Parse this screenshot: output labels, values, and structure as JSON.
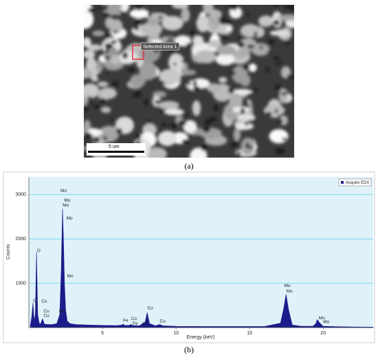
{
  "image_panel": {
    "label": "(a)",
    "selection_label": "Selected Area 1",
    "scale_bar": "5 um"
  },
  "chart_data": {
    "type": "area",
    "label": "(b)",
    "x_label": "Energy (keV)",
    "y_label": "Counts",
    "x": [
      0.1,
      0.2,
      0.28,
      0.36,
      0.44,
      0.52,
      0.6,
      0.7,
      0.8,
      0.93,
      1.05,
      1.3,
      1.6,
      1.9,
      2.1,
      2.2,
      2.29,
      2.35,
      2.42,
      2.5,
      2.6,
      2.8,
      3.2,
      4,
      5,
      6,
      6.3,
      6.4,
      6.5,
      6.8,
      6.93,
      7.05,
      7.5,
      7.9,
      8.04,
      8.2,
      8.6,
      8.9,
      9.1,
      10,
      12,
      14,
      16,
      17.1,
      17.3,
      17.48,
      17.65,
      17.9,
      18.5,
      19.3,
      19.5,
      19.6,
      19.75,
      20,
      21,
      22,
      23.4
    ],
    "series": [
      {
        "name": "Acquire EDX",
        "color": "#1c1c8a",
        "values": [
          50,
          250,
          560,
          150,
          300,
          1700,
          300,
          100,
          80,
          200,
          80,
          70,
          70,
          90,
          300,
          1300,
          2680,
          2000,
          1000,
          400,
          150,
          90,
          70,
          60,
          50,
          45,
          55,
          80,
          50,
          50,
          70,
          50,
          40,
          120,
          340,
          90,
          40,
          70,
          40,
          30,
          25,
          25,
          25,
          100,
          400,
          750,
          400,
          60,
          30,
          30,
          90,
          180,
          110,
          30,
          20,
          15,
          10
        ]
      }
    ],
    "xlim": [
      0,
      23.4
    ],
    "ylim": [
      0,
      3400
    ],
    "xticks": [
      5,
      10,
      15,
      20
    ],
    "yticks": [
      1000,
      2000,
      3000
    ],
    "grid": true,
    "legend": "upper right",
    "background": "#dff2fa",
    "grid_color": "#5fd3e6",
    "annotations": [
      {
        "text": "Mo",
        "x": 2.15,
        "y": 3085
      },
      {
        "text": "Mo",
        "x": 2.4,
        "y": 2870
      },
      {
        "text": "Mo",
        "x": 2.3,
        "y": 2760
      },
      {
        "text": "Mo",
        "x": 2.55,
        "y": 2465
      },
      {
        "text": "Mo",
        "x": 2.6,
        "y": 1160
      },
      {
        "text": "O",
        "x": 0.55,
        "y": 1735
      },
      {
        "text": "C",
        "x": 0.28,
        "y": 600
      },
      {
        "text": "Cu",
        "x": 0.85,
        "y": 590
      },
      {
        "text": "Cu",
        "x": 1.0,
        "y": 370
      },
      {
        "text": "Cu",
        "x": 1.0,
        "y": 265
      },
      {
        "text": "Mo",
        "x": 2.05,
        "y": 370
      },
      {
        "text": "Fe",
        "x": 6.4,
        "y": 155
      },
      {
        "text": "Co",
        "x": 6.95,
        "y": 200
      },
      {
        "text": "Fe",
        "x": 7.05,
        "y": 90
      },
      {
        "text": "Co",
        "x": 7.7,
        "y": 78
      },
      {
        "text": "Cu",
        "x": 8.05,
        "y": 435
      },
      {
        "text": "Cu",
        "x": 8.9,
        "y": 140
      },
      {
        "text": "Mo",
        "x": 17.35,
        "y": 945
      },
      {
        "text": "Mo",
        "x": 17.5,
        "y": 820
      },
      {
        "text": "Mo",
        "x": 19.7,
        "y": 215
      },
      {
        "text": "Mo",
        "x": 20.0,
        "y": 125
      }
    ]
  }
}
